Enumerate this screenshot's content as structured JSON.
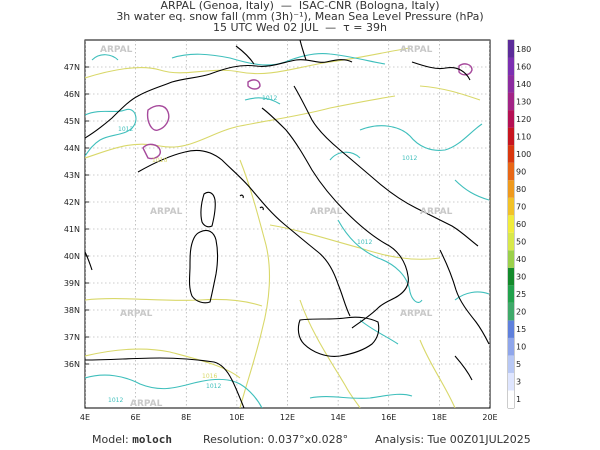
{
  "title": {
    "line1": "ARPAL (Genoa, Italy)  —  ISAC-CNR (Bologna, Italy)",
    "line2": "3h water eq. snow fall (mm (3h)⁻¹), Mean Sea Level Pressure (hPa)",
    "line3": "15 UTC Wed 02 JUL  —  τ = 39h"
  },
  "axes": {
    "lat_labels": [
      "47N",
      "46N",
      "45N",
      "44N",
      "43N",
      "42N",
      "41N",
      "40N",
      "39N",
      "38N",
      "37N",
      "36N"
    ],
    "lon_labels": [
      "4E",
      "6E",
      "8E",
      "10E",
      "12E",
      "14E",
      "16E",
      "18E",
      "20E"
    ]
  },
  "watermark": "ARPAL",
  "isobar_labels": [
    "1012",
    "1012",
    "1012",
    "1012",
    "1016",
    "1016",
    "1012",
    "1012"
  ],
  "colorbar": {
    "labels": [
      "1",
      "3",
      "5",
      "10",
      "15",
      "20",
      "25",
      "30",
      "40",
      "50",
      "60",
      "70",
      "80",
      "90",
      "100",
      "110",
      "120",
      "130",
      "140",
      "160",
      "180"
    ],
    "colors": [
      "#ffffff",
      "#dfe6ff",
      "#b8c8f5",
      "#8fa6eb",
      "#5f80dc",
      "#3fa96a",
      "#22a24d",
      "#138a2b",
      "#9bd04a",
      "#d8e84a",
      "#f1ec3c",
      "#f2c228",
      "#ef9a1d",
      "#e86716",
      "#d9380f",
      "#c7151f",
      "#b51053",
      "#a22486",
      "#8c2ca0",
      "#7b2fb1",
      "#5c2c9a"
    ]
  },
  "footer": {
    "model_label": "Model: ",
    "model_value": "moloch",
    "resolution_label": "Resolution: 0.037°x0.028°",
    "analysis_label": "Analysis: Tue 00Z01JUL2025"
  }
}
